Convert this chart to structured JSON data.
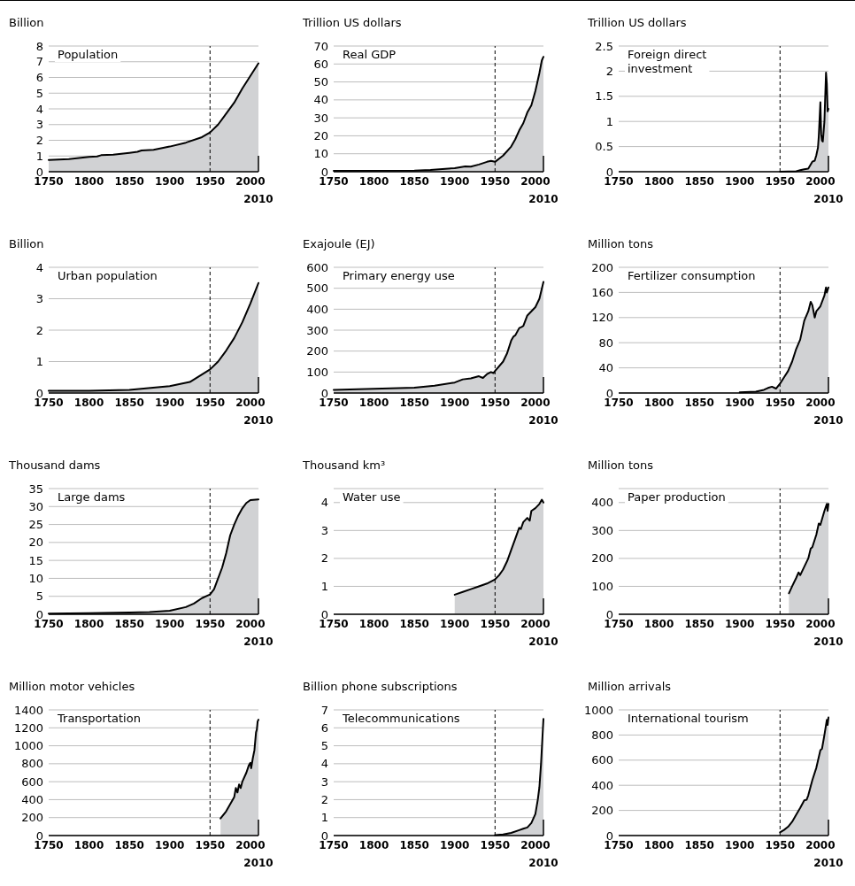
{
  "chart_data": [
    {
      "type": "area",
      "title": "Population",
      "ylabel": "Billion",
      "xlabel": "2010",
      "xlim": [
        1750,
        2010
      ],
      "xticks": [
        1750,
        1800,
        1850,
        1900,
        1950,
        2000
      ],
      "ylim": [
        0,
        8
      ],
      "yticks": [
        0,
        1,
        2,
        3,
        4,
        5,
        6,
        7,
        8
      ],
      "grid": "y",
      "ref_lines": [
        {
          "axis": "x",
          "value": 1950,
          "line_style": "dashed"
        }
      ],
      "series": [
        {
          "color": "#d1d2d4",
          "x": [
            1750,
            1775,
            1800,
            1810,
            1815,
            1830,
            1850,
            1860,
            1865,
            1880,
            1900,
            1920,
            1940,
            1950,
            1960,
            1970,
            1980,
            1990,
            2000,
            2010
          ],
          "values": [
            0.75,
            0.8,
            0.95,
            0.97,
            1.05,
            1.08,
            1.2,
            1.27,
            1.35,
            1.4,
            1.6,
            1.85,
            2.2,
            2.5,
            3.0,
            3.7,
            4.4,
            5.3,
            6.1,
            6.9
          ]
        }
      ]
    },
    {
      "type": "area",
      "title": "Real GDP",
      "ylabel": "Trillion US dollars",
      "xlabel": "2010",
      "xlim": [
        1750,
        2010
      ],
      "xticks": [
        1750,
        1800,
        1850,
        1900,
        1950,
        2000
      ],
      "ylim": [
        0,
        70
      ],
      "yticks": [
        0,
        10,
        20,
        30,
        40,
        50,
        60,
        70
      ],
      "grid": "y",
      "ref_lines": [
        {
          "axis": "x",
          "value": 1950,
          "line_style": "dashed"
        }
      ],
      "series": [
        {
          "color": "#d1d2d4",
          "x": [
            1750,
            1850,
            1870,
            1900,
            1913,
            1920,
            1930,
            1940,
            1945,
            1950,
            1960,
            1970,
            1975,
            1980,
            1985,
            1990,
            1995,
            2000,
            2005,
            2008,
            2010
          ],
          "values": [
            0.5,
            0.6,
            1,
            2,
            3,
            2.8,
            4,
            5.5,
            6,
            5.5,
            9,
            14,
            18,
            23,
            27,
            33,
            37,
            45,
            55,
            62,
            64
          ]
        }
      ]
    },
    {
      "type": "area",
      "title": "Foreign direct investment",
      "ylabel": "Trillion US dollars",
      "xlabel": "2010",
      "xlim": [
        1750,
        2010
      ],
      "xticks": [
        1750,
        1800,
        1850,
        1900,
        1950,
        2000
      ],
      "ylim": [
        0,
        2.5
      ],
      "yticks": [
        0,
        0.5,
        1,
        1.5,
        2,
        2.5
      ],
      "grid": "y",
      "ref_lines": [
        {
          "axis": "x",
          "value": 1950,
          "line_style": "dashed"
        }
      ],
      "series": [
        {
          "color": "#d1d2d4",
          "x": [
            1950,
            1970,
            1975,
            1980,
            1985,
            1990,
            1993,
            1995,
            1997,
            1998,
            2000,
            2001,
            2002,
            2003,
            2005,
            2007,
            2008,
            2009,
            2010
          ],
          "values": [
            0,
            0.01,
            0.03,
            0.05,
            0.06,
            0.2,
            0.22,
            0.33,
            0.48,
            0.7,
            1.38,
            0.75,
            0.62,
            0.6,
            1.0,
            1.97,
            1.75,
            1.2,
            1.25
          ]
        }
      ]
    },
    {
      "type": "area",
      "title": "Urban population",
      "ylabel": "Billion",
      "xlabel": "2010",
      "xlim": [
        1750,
        2010
      ],
      "xticks": [
        1750,
        1800,
        1850,
        1900,
        1950,
        2000
      ],
      "ylim": [
        0,
        4
      ],
      "yticks": [
        0,
        1,
        2,
        3,
        4
      ],
      "grid": "y",
      "ref_lines": [
        {
          "axis": "x",
          "value": 1950,
          "line_style": "dashed"
        }
      ],
      "series": [
        {
          "color": "#d1d2d4",
          "x": [
            1750,
            1800,
            1850,
            1900,
            1925,
            1950,
            1960,
            1970,
            1980,
            1990,
            2000,
            2010
          ],
          "values": [
            0.07,
            0.07,
            0.1,
            0.22,
            0.35,
            0.75,
            1.0,
            1.35,
            1.75,
            2.25,
            2.85,
            3.5
          ]
        }
      ]
    },
    {
      "type": "area",
      "title": "Primary energy use",
      "ylabel": "Exajoule (EJ)",
      "xlabel": "2010",
      "xlim": [
        1750,
        2010
      ],
      "xticks": [
        1750,
        1800,
        1850,
        1900,
        1950,
        2000
      ],
      "ylim": [
        0,
        600
      ],
      "yticks": [
        0,
        100,
        200,
        300,
        400,
        500,
        600
      ],
      "grid": "y",
      "ref_lines": [
        {
          "axis": "x",
          "value": 1950,
          "line_style": "dashed"
        }
      ],
      "series": [
        {
          "color": "#d1d2d4",
          "x": [
            1750,
            1800,
            1850,
            1875,
            1900,
            1910,
            1920,
            1925,
            1930,
            1935,
            1940,
            1945,
            1948,
            1950,
            1960,
            1965,
            1970,
            1973,
            1975,
            1980,
            1983,
            1985,
            1990,
            1995,
            2000,
            2005,
            2010
          ],
          "values": [
            15,
            20,
            25,
            35,
            50,
            65,
            70,
            75,
            80,
            72,
            90,
            100,
            95,
            105,
            150,
            190,
            250,
            270,
            275,
            310,
            315,
            320,
            370,
            390,
            410,
            450,
            530
          ]
        }
      ]
    },
    {
      "type": "area",
      "title": "Fertilizer consumption",
      "ylabel": "Million tons",
      "xlabel": "2010",
      "xlim": [
        1750,
        2010
      ],
      "xticks": [
        1750,
        1800,
        1850,
        1900,
        1950,
        2000
      ],
      "ylim": [
        0,
        200
      ],
      "yticks": [
        0,
        40,
        80,
        120,
        160,
        200
      ],
      "grid": "y",
      "ref_lines": [
        {
          "axis": "x",
          "value": 1950,
          "line_style": "dashed"
        }
      ],
      "series": [
        {
          "color": "#d1d2d4",
          "x": [
            1900,
            1920,
            1930,
            1935,
            1940,
            1945,
            1950,
            1955,
            1960,
            1965,
            1970,
            1975,
            1980,
            1985,
            1988,
            1990,
            1993,
            1995,
            2000,
            2005,
            2007,
            2008,
            2010
          ],
          "values": [
            1,
            2,
            5,
            8,
            10,
            7,
            15,
            25,
            35,
            50,
            70,
            85,
            115,
            130,
            145,
            140,
            120,
            130,
            138,
            155,
            168,
            160,
            168
          ]
        }
      ]
    },
    {
      "type": "area",
      "title": "Large dams",
      "ylabel": "Thousand dams",
      "xlabel": "2010",
      "xlim": [
        1750,
        2010
      ],
      "xticks": [
        1750,
        1800,
        1850,
        1900,
        1950,
        2000
      ],
      "ylim": [
        0,
        35
      ],
      "yticks": [
        0,
        5,
        10,
        15,
        20,
        25,
        30,
        35
      ],
      "grid": "y",
      "ref_lines": [
        {
          "axis": "x",
          "value": 1950,
          "line_style": "dashed"
        }
      ],
      "series": [
        {
          "color": "#d1d2d4",
          "x": [
            1750,
            1800,
            1850,
            1875,
            1900,
            1920,
            1930,
            1940,
            1950,
            1955,
            1960,
            1965,
            1970,
            1975,
            1980,
            1985,
            1990,
            1995,
            2000,
            2010
          ],
          "values": [
            0.2,
            0.3,
            0.5,
            0.6,
            1.0,
            2.0,
            3.0,
            4.5,
            5.5,
            7,
            10,
            13,
            17,
            22,
            25,
            27.5,
            29.5,
            31,
            31.8,
            32
          ]
        }
      ]
    },
    {
      "type": "area",
      "title": "Water use",
      "ylabel": "Thousand km³",
      "xlabel": "2010",
      "xlim": [
        1750,
        2010
      ],
      "xticks": [
        1750,
        1800,
        1850,
        1900,
        1950,
        2000
      ],
      "ylim": [
        0,
        4.5
      ],
      "yticks": [
        0,
        1,
        2,
        3,
        4,
        {
          "value": 4.5,
          "label": null
        }
      ],
      "grid": "y",
      "ref_lines": [
        {
          "axis": "x",
          "value": 1950,
          "line_style": "dashed"
        }
      ],
      "series": [
        {
          "color": "#d1d2d4",
          "x": [
            1900,
            1910,
            1920,
            1930,
            1940,
            1950,
            1955,
            1960,
            1965,
            1970,
            1975,
            1980,
            1982,
            1985,
            1990,
            1993,
            1995,
            2000,
            2005,
            2008,
            2010
          ],
          "values": [
            0.7,
            0.8,
            0.9,
            1.0,
            1.1,
            1.25,
            1.4,
            1.6,
            1.9,
            2.3,
            2.7,
            3.1,
            3.05,
            3.3,
            3.45,
            3.35,
            3.7,
            3.8,
            3.95,
            4.1,
            4.0
          ]
        }
      ]
    },
    {
      "type": "area",
      "title": "Paper production",
      "ylabel": "Million tons",
      "xlabel": "2010",
      "xlim": [
        1750,
        2010
      ],
      "xticks": [
        1750,
        1800,
        1850,
        1900,
        1950,
        2000
      ],
      "ylim": [
        0,
        450
      ],
      "yticks": [
        0,
        100,
        200,
        300,
        400,
        {
          "value": 450,
          "label": null
        }
      ],
      "grid": "y",
      "ref_lines": [
        {
          "axis": "x",
          "value": 1950,
          "line_style": "dashed"
        }
      ],
      "series": [
        {
          "color": "#d1d2d4",
          "x": [
            1961,
            1965,
            1970,
            1973,
            1975,
            1980,
            1985,
            1988,
            1990,
            1995,
            1998,
            2000,
            2005,
            2008,
            2009,
            2010
          ],
          "values": [
            75,
            100,
            130,
            150,
            140,
            170,
            200,
            235,
            240,
            285,
            325,
            320,
            370,
            395,
            370,
            395
          ]
        }
      ]
    },
    {
      "type": "area",
      "title": "Transportation",
      "ylabel": "Million motor vehicles",
      "xlabel": "2010",
      "xlim": [
        1750,
        2010
      ],
      "xticks": [
        1750,
        1800,
        1850,
        1900,
        1950,
        2000
      ],
      "ylim": [
        0,
        1400
      ],
      "yticks": [
        0,
        200,
        400,
        600,
        800,
        1000,
        1200,
        1400
      ],
      "grid": "y",
      "ref_lines": [
        {
          "axis": "x",
          "value": 1950,
          "line_style": "dashed"
        }
      ],
      "series": [
        {
          "color": "#d1d2d4",
          "x": [
            1963,
            1970,
            1975,
            1980,
            1982,
            1984,
            1986,
            1988,
            1990,
            1995,
            1998,
            2000,
            2001,
            2003,
            2005,
            2007,
            2008,
            2009,
            2010
          ],
          "values": [
            190,
            270,
            350,
            430,
            530,
            480,
            570,
            530,
            600,
            700,
            780,
            810,
            750,
            860,
            950,
            1150,
            1180,
            1270,
            1290
          ]
        }
      ]
    },
    {
      "type": "area",
      "title": "Telecommunications",
      "ylabel": "Billion phone subscriptions",
      "xlabel": "2010",
      "xlim": [
        1750,
        2010
      ],
      "xticks": [
        1750,
        1800,
        1850,
        1900,
        1950,
        2000
      ],
      "ylim": [
        0,
        7
      ],
      "yticks": [
        0,
        1,
        2,
        3,
        4,
        5,
        6,
        7
      ],
      "grid": "y",
      "ref_lines": [
        {
          "axis": "x",
          "value": 1950,
          "line_style": "dashed"
        }
      ],
      "series": [
        {
          "color": "#d1d2d4",
          "x": [
            1950,
            1960,
            1970,
            1980,
            1985,
            1990,
            1995,
            2000,
            2003,
            2005,
            2007,
            2010
          ],
          "values": [
            0.02,
            0.06,
            0.15,
            0.3,
            0.38,
            0.45,
            0.7,
            1.2,
            2.0,
            2.7,
            4.0,
            6.5
          ]
        }
      ]
    },
    {
      "type": "area",
      "title": "International tourism",
      "ylabel": "Million arrivals",
      "xlabel": "2010",
      "xlim": [
        1750,
        2010
      ],
      "xticks": [
        1750,
        1800,
        1850,
        1900,
        1950,
        2000
      ],
      "ylim": [
        0,
        1000
      ],
      "yticks": [
        0,
        200,
        400,
        600,
        800,
        1000
      ],
      "grid": "y",
      "ref_lines": [
        {
          "axis": "x",
          "value": 1950,
          "line_style": "dashed"
        }
      ],
      "series": [
        {
          "color": "#d1d2d4",
          "x": [
            1950,
            1955,
            1960,
            1965,
            1970,
            1975,
            1980,
            1983,
            1985,
            1990,
            1995,
            2000,
            2002,
            2005,
            2008,
            2009,
            2010
          ],
          "values": [
            25,
            45,
            70,
            110,
            165,
            220,
            280,
            285,
            320,
            440,
            540,
            680,
            690,
            800,
            920,
            880,
            940
          ]
        }
      ]
    }
  ]
}
